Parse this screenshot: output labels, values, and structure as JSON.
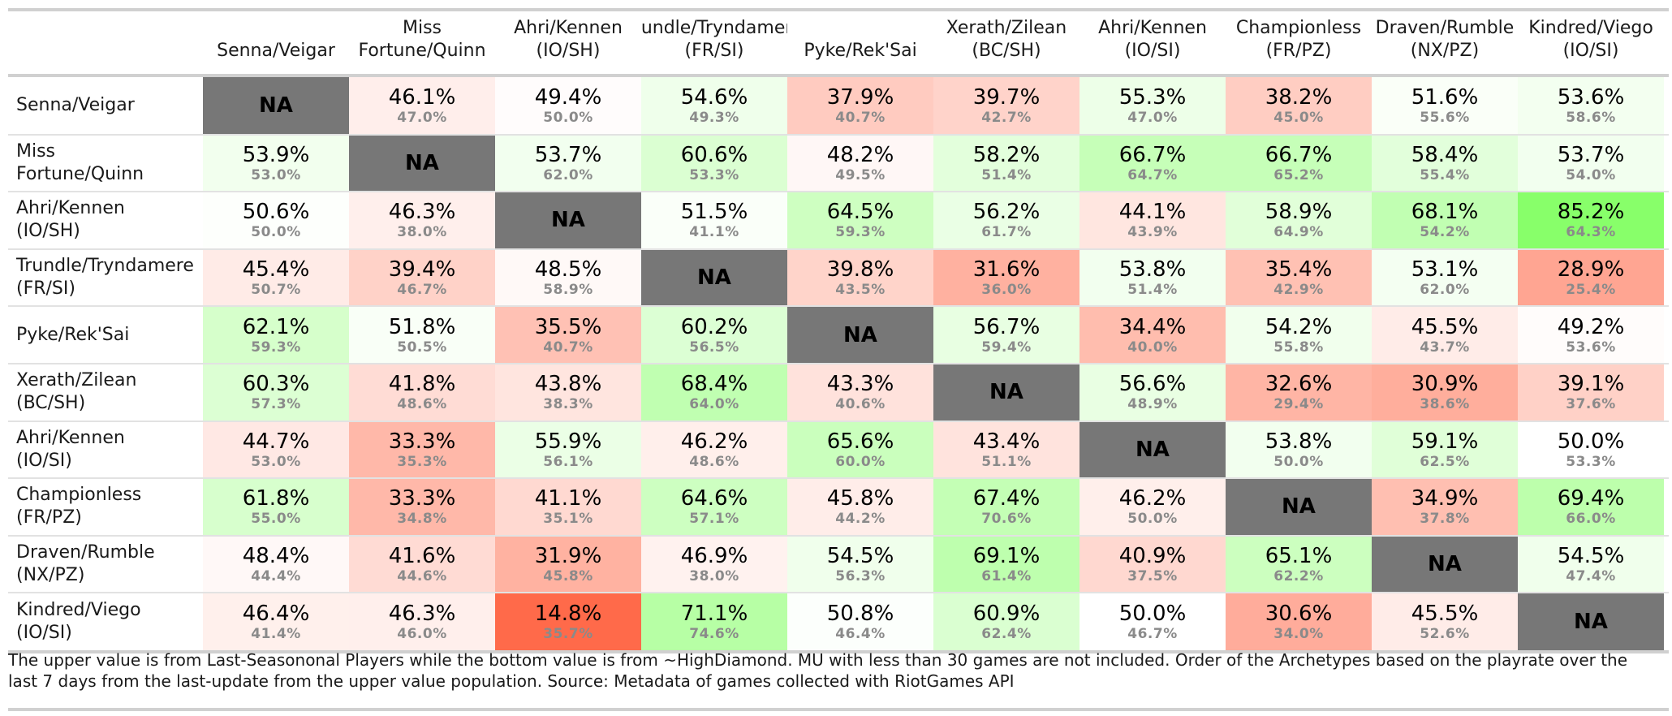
{
  "chart_data": {
    "type": "heatmap",
    "columns": [
      {
        "l1": "",
        "l2": "Senna/Veigar"
      },
      {
        "l1": "Miss",
        "l2": "Fortune/Quinn"
      },
      {
        "l1": "Ahri/Kennen",
        "l2": "(IO/SH)"
      },
      {
        "l1": "Trundle/Tryndamere",
        "l2": "(FR/SI)"
      },
      {
        "l1": "",
        "l2": "Pyke/Rek'Sai"
      },
      {
        "l1": "Xerath/Zilean",
        "l2": "(BC/SH)"
      },
      {
        "l1": "Ahri/Kennen",
        "l2": "(IO/SI)"
      },
      {
        "l1": "Championless",
        "l2": "(FR/PZ)"
      },
      {
        "l1": "Draven/Rumble",
        "l2": "(NX/PZ)"
      },
      {
        "l1": "Kindred/Viego",
        "l2": "(IO/SI)"
      }
    ],
    "rows": [
      {
        "l1": "Senna/Veigar",
        "l2": ""
      },
      {
        "l1": "Miss",
        "l2": "Fortune/Quinn"
      },
      {
        "l1": "Ahri/Kennen",
        "l2": "(IO/SH)"
      },
      {
        "l1": "Trundle/Tryndamere",
        "l2": "(FR/SI)"
      },
      {
        "l1": "Pyke/Rek'Sai",
        "l2": ""
      },
      {
        "l1": "Xerath/Zilean",
        "l2": "(BC/SH)"
      },
      {
        "l1": "Ahri/Kennen",
        "l2": "(IO/SI)"
      },
      {
        "l1": "Championless",
        "l2": "(FR/PZ)"
      },
      {
        "l1": "Draven/Rumble",
        "l2": "(NX/PZ)"
      },
      {
        "l1": "Kindred/Viego",
        "l2": "(IO/SI)"
      }
    ],
    "na_label": "NA",
    "upper_values": [
      [
        null,
        46.1,
        49.4,
        54.6,
        37.9,
        39.7,
        55.3,
        38.2,
        51.6,
        53.6
      ],
      [
        53.9,
        null,
        53.7,
        60.6,
        48.2,
        58.2,
        66.7,
        66.7,
        58.4,
        53.7
      ],
      [
        50.6,
        46.3,
        null,
        51.5,
        64.5,
        56.2,
        44.1,
        58.9,
        68.1,
        85.2
      ],
      [
        45.4,
        39.4,
        48.5,
        null,
        39.8,
        31.6,
        53.8,
        35.4,
        53.1,
        28.9
      ],
      [
        62.1,
        51.8,
        35.5,
        60.2,
        null,
        56.7,
        34.4,
        54.2,
        45.5,
        49.2
      ],
      [
        60.3,
        41.8,
        43.8,
        68.4,
        43.3,
        null,
        56.6,
        32.6,
        30.9,
        39.1
      ],
      [
        44.7,
        33.3,
        55.9,
        46.2,
        65.6,
        43.4,
        null,
        53.8,
        59.1,
        50.0
      ],
      [
        61.8,
        33.3,
        41.1,
        64.6,
        45.8,
        67.4,
        46.2,
        null,
        34.9,
        69.4
      ],
      [
        48.4,
        41.6,
        31.9,
        46.9,
        54.5,
        69.1,
        40.9,
        65.1,
        null,
        54.5
      ],
      [
        46.4,
        46.3,
        14.8,
        71.1,
        50.8,
        60.9,
        50.0,
        30.6,
        45.5,
        null
      ]
    ],
    "lower_values": [
      [
        null,
        47.0,
        50.0,
        49.3,
        40.7,
        42.7,
        47.0,
        45.0,
        55.6,
        58.6
      ],
      [
        53.0,
        null,
        62.0,
        53.3,
        49.5,
        51.4,
        64.7,
        65.2,
        55.4,
        54.0
      ],
      [
        50.0,
        38.0,
        null,
        41.1,
        59.3,
        61.7,
        43.9,
        64.9,
        54.2,
        64.3
      ],
      [
        50.7,
        46.7,
        58.9,
        null,
        43.5,
        36.0,
        51.4,
        42.9,
        62.0,
        25.4
      ],
      [
        59.3,
        50.5,
        40.7,
        56.5,
        null,
        59.4,
        40.0,
        55.8,
        43.7,
        53.6
      ],
      [
        57.3,
        48.6,
        38.3,
        64.0,
        40.6,
        null,
        48.9,
        29.4,
        38.6,
        37.6
      ],
      [
        53.0,
        35.3,
        56.1,
        48.6,
        60.0,
        51.1,
        null,
        50.0,
        62.5,
        53.3
      ],
      [
        55.0,
        34.8,
        35.1,
        57.1,
        44.2,
        70.6,
        50.0,
        null,
        37.8,
        66.0
      ],
      [
        44.4,
        44.6,
        45.8,
        38.0,
        56.3,
        61.4,
        37.5,
        62.2,
        null,
        47.4
      ],
      [
        41.4,
        46.0,
        35.7,
        74.6,
        46.4,
        62.4,
        46.7,
        34.0,
        52.6,
        null
      ]
    ],
    "value_format": "percent_1dp",
    "colors": {
      "low": "#ff6a4a",
      "mid": "#ffffff",
      "high": "#88ff6a",
      "na": "#777777"
    },
    "color_midpoint": 50
  },
  "footnote": "The upper value is from Last-Seasononal Players while the bottom value is from ~HighDiamond. MU with less than 30 games are not included. Order of the Archetypes based on the playrate over the last 7 days from the last-update from the upper value population. Source: Metadata of games collected with RiotGames API"
}
